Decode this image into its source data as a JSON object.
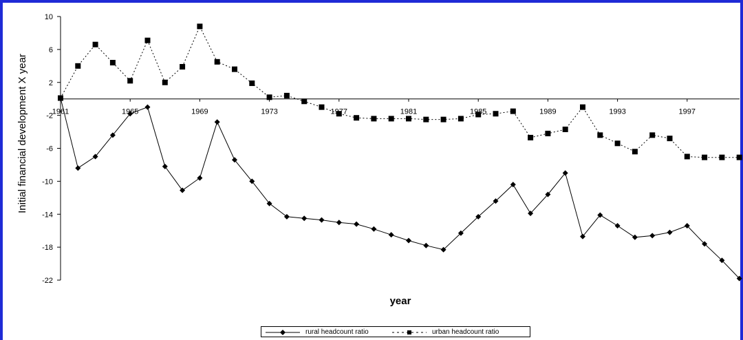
{
  "chart_data": {
    "type": "line",
    "title": "",
    "xlabel": "year",
    "ylabel": "Initial financial development X year",
    "ylim": [
      -22,
      10
    ],
    "yticks": [
      10,
      6,
      2,
      -2,
      -6,
      -10,
      -14,
      -18,
      -22
    ],
    "ytick_labels": [
      "10",
      "6",
      "2",
      "-2",
      "-6",
      "-10",
      "-14",
      "-18",
      "-22"
    ],
    "xlim": [
      1961,
      2000
    ],
    "xticks": [
      1961,
      1965,
      1969,
      1973,
      1977,
      1981,
      1985,
      1989,
      1993,
      1997
    ],
    "xtick_labels": [
      "1961",
      "1965",
      "1969",
      "1973",
      "1977",
      "1981",
      "1985",
      "1989",
      "1993",
      "1997"
    ],
    "x": [
      1961,
      1962,
      1963,
      1964,
      1965,
      1966,
      1967,
      1968,
      1969,
      1970,
      1971,
      1972,
      1973,
      1974,
      1975,
      1976,
      1977,
      1978,
      1979,
      1980,
      1981,
      1982,
      1983,
      1984,
      1985,
      1986,
      1987,
      1988,
      1989,
      1990,
      1991,
      1992,
      1993,
      1994,
      1995,
      1996,
      1997,
      1998,
      1999,
      2000
    ],
    "series": [
      {
        "name": "rural headcount ratio",
        "style": "solid",
        "marker": "diamond",
        "color": "#000000",
        "values": [
          0.1,
          -8.4,
          -7.0,
          -4.4,
          -1.8,
          -1.0,
          -8.2,
          -11.1,
          -9.6,
          -2.8,
          -7.4,
          -10.0,
          -12.7,
          -14.3,
          -14.5,
          -14.7,
          -15.0,
          -15.2,
          -15.8,
          -16.5,
          -17.2,
          -17.8,
          -18.3,
          -16.3,
          -14.3,
          -12.4,
          -10.4,
          -13.9,
          -11.6,
          -9.0,
          -16.7,
          -14.1,
          -15.4,
          -16.8,
          -16.6,
          -16.2,
          -15.4,
          -17.6,
          -19.6,
          -21.8
        ]
      },
      {
        "name": "urban headcount ratio",
        "style": "dashed",
        "marker": "square",
        "color": "#000000",
        "values": [
          0.1,
          4.0,
          6.6,
          4.4,
          2.2,
          7.1,
          2.0,
          3.9,
          8.8,
          4.5,
          3.6,
          1.9,
          0.2,
          0.4,
          -0.3,
          -1.0,
          -1.8,
          -2.3,
          -2.4,
          -2.4,
          -2.4,
          -2.5,
          -2.5,
          -2.4,
          -1.9,
          -1.8,
          -1.5,
          -4.7,
          -4.2,
          -3.7,
          -1.0,
          -4.4,
          -5.4,
          -6.4,
          -4.4,
          -4.8,
          -7.0,
          -7.1,
          -7.1,
          -7.1
        ]
      }
    ],
    "grid": false,
    "legend": "bottom-center"
  }
}
